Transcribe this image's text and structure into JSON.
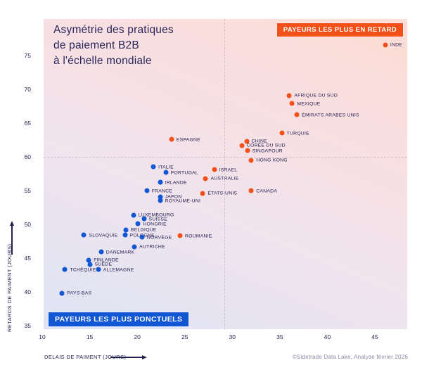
{
  "header": {
    "title": "Asymétrie des pratiques\nde paiement B2B\nà l'échelle mondiale"
  },
  "badges": {
    "late": "PAYEURS LES PLUS EN RETARD",
    "punctual": "PAYEURS LES PLUS PONCTUELS"
  },
  "footer": {
    "credit": "©Sidetrade Data Lake, Analyse février 2026"
  },
  "colors": {
    "late": "#f4511a",
    "punctual": "#1156d2",
    "title": "#2a2659",
    "tick": "#23214f"
  },
  "chart_data": {
    "type": "scatter",
    "title": "Asymétrie des pratiques de paiement B2B à l'échelle mondiale",
    "xlabel": "DELAIS DE PAIMENT (JOURS)",
    "ylabel": "RETARDS DE PAIMENT (JOURS)",
    "x_ticks": [
      10,
      15,
      20,
      25,
      30,
      35,
      40,
      45
    ],
    "y_ticks": [
      35,
      40,
      45,
      50,
      55,
      60,
      65,
      70,
      75
    ],
    "xlim": [
      9.8,
      48.4
    ],
    "ylim": [
      34.5,
      80.4
    ],
    "grid": false,
    "dividers": {
      "x": 29.2,
      "y": 60
    },
    "legend_position": "badge-top-right-late, badge-bottom-left-punctual",
    "series": [
      {
        "name": "PAYEURS LES PLUS EN RETARD",
        "color": "#f4511a",
        "points": [
          {
            "label": "INDE",
            "x": 46.1,
            "y": 76.6
          },
          {
            "label": "AFRIQUE DU SUD",
            "x": 36.0,
            "y": 69.1
          },
          {
            "label": "MEXIQUE",
            "x": 36.3,
            "y": 67.9
          },
          {
            "label": "ÉMIRATS ARABES UNIS",
            "x": 36.8,
            "y": 66.2
          },
          {
            "label": "TURQUIE",
            "x": 35.2,
            "y": 63.5
          },
          {
            "label": "ESPAGNE",
            "x": 23.6,
            "y": 62.6
          },
          {
            "label": "CHINE",
            "x": 31.5,
            "y": 62.3
          },
          {
            "label": "CORÉE DU SUD",
            "x": 31.0,
            "y": 61.7
          },
          {
            "label": "SINGAPOUR",
            "x": 31.6,
            "y": 60.9
          },
          {
            "label": "HONG KONG",
            "x": 32.0,
            "y": 59.5
          },
          {
            "label": "ISRAEL",
            "x": 28.1,
            "y": 58.1
          },
          {
            "label": "AUSTRALIE",
            "x": 27.2,
            "y": 56.8
          },
          {
            "label": "CANADA",
            "x": 32.0,
            "y": 55.0
          },
          {
            "label": "ÉTATS-UNIS",
            "x": 26.9,
            "y": 54.6
          },
          {
            "label": "ROUMANIE",
            "x": 24.5,
            "y": 48.3
          }
        ]
      },
      {
        "name": "PAYEURS LES PLUS PONCTUELS",
        "color": "#1156d2",
        "points": [
          {
            "label": "ITALIE",
            "x": 21.7,
            "y": 58.5
          },
          {
            "label": "PORTUGAL",
            "x": 23.0,
            "y": 57.7
          },
          {
            "label": "IRLANDE",
            "x": 22.4,
            "y": 56.2
          },
          {
            "label": "FRANCE",
            "x": 21.0,
            "y": 55.0
          },
          {
            "label": "JAPON",
            "x": 22.4,
            "y": 54.1
          },
          {
            "label": "ROYAUME-UNI",
            "x": 22.4,
            "y": 53.5
          },
          {
            "label": "LUXEMBOURG",
            "x": 19.6,
            "y": 51.4
          },
          {
            "label": "SUISSE",
            "x": 20.7,
            "y": 50.8
          },
          {
            "label": "HONGRIE",
            "x": 20.1,
            "y": 50.1
          },
          {
            "label": "BELGIQUE",
            "x": 18.8,
            "y": 49.2
          },
          {
            "label": "SLOVAQUIE",
            "x": 14.4,
            "y": 48.4
          },
          {
            "label": "POLOGNE",
            "x": 18.7,
            "y": 48.4
          },
          {
            "label": "NORVÈGE",
            "x": 20.5,
            "y": 48.1
          },
          {
            "label": "AUTRICHE",
            "x": 19.7,
            "y": 46.7
          },
          {
            "label": "DANEMARK",
            "x": 16.2,
            "y": 45.9
          },
          {
            "label": "FINLANDE",
            "x": 14.9,
            "y": 44.7
          },
          {
            "label": "SUÈDE",
            "x": 15.0,
            "y": 44.1
          },
          {
            "label": "ALLEMAGNE",
            "x": 15.9,
            "y": 43.3
          },
          {
            "label": "TCHÉQUIE",
            "x": 12.4,
            "y": 43.3
          },
          {
            "label": "PAYS-BAS",
            "x": 12.1,
            "y": 39.8
          }
        ]
      }
    ]
  }
}
